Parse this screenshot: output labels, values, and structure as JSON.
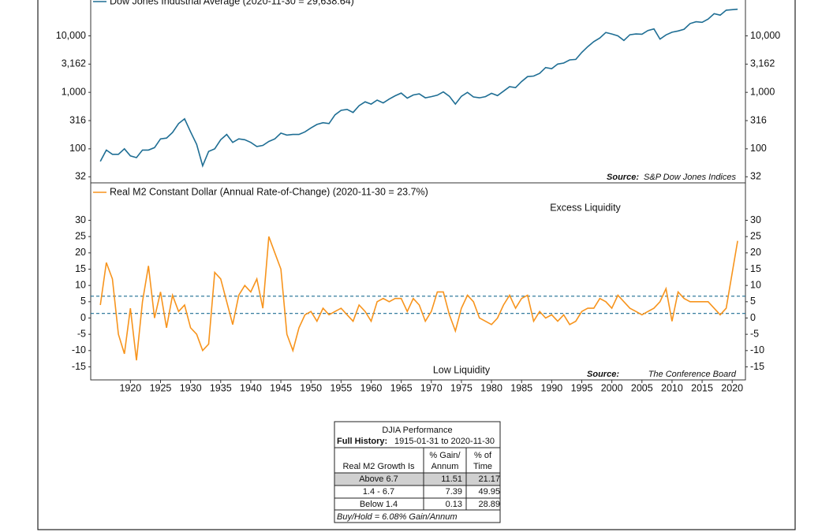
{
  "chart_data": [
    {
      "type": "line",
      "log_y": true,
      "series": [
        {
          "name": "Dow Jones Industrial Average (2020-11-30 = 29,638.64)",
          "color": "#1f6e94",
          "values": [
            60,
            95,
            80,
            80,
            100,
            75,
            70,
            95,
            95,
            105,
            150,
            155,
            195,
            280,
            340,
            200,
            120,
            50,
            90,
            100,
            145,
            180,
            130,
            150,
            145,
            130,
            110,
            115,
            135,
            150,
            190,
            175,
            180,
            180,
            200,
            235,
            270,
            290,
            280,
            400,
            480,
            500,
            440,
            580,
            680,
            620,
            730,
            650,
            760,
            870,
            970,
            790,
            900,
            940,
            800,
            840,
            890,
            1020,
            850,
            620,
            850,
            1000,
            830,
            800,
            840,
            960,
            875,
            1050,
            1260,
            1210,
            1550,
            1900,
            1940,
            2170,
            2750,
            2630,
            3170,
            3300,
            3750,
            3830,
            5100,
            6450,
            7900,
            9180,
            11500,
            10800,
            10000,
            8300,
            10450,
            10800,
            10700,
            12460,
            13260,
            8780,
            10400,
            11580,
            12200,
            13100,
            16500,
            17800,
            17400,
            19800,
            24700,
            23300,
            28500,
            29639
          ]
        }
      ],
      "x": [
        1915,
        1916,
        1917,
        1918,
        1919,
        1920,
        1921,
        1922,
        1923,
        1924,
        1925,
        1926,
        1927,
        1928,
        1929,
        1930,
        1931,
        1932,
        1933,
        1934,
        1935,
        1936,
        1937,
        1938,
        1939,
        1940,
        1941,
        1942,
        1943,
        1944,
        1945,
        1946,
        1947,
        1948,
        1949,
        1950,
        1951,
        1952,
        1953,
        1954,
        1955,
        1956,
        1957,
        1958,
        1959,
        1960,
        1961,
        1962,
        1963,
        1964,
        1965,
        1966,
        1967,
        1968,
        1969,
        1970,
        1971,
        1972,
        1973,
        1974,
        1975,
        1976,
        1977,
        1978,
        1979,
        1980,
        1981,
        1982,
        1983,
        1984,
        1985,
        1986,
        1987,
        1988,
        1989,
        1990,
        1991,
        1992,
        1993,
        1994,
        1995,
        1996,
        1997,
        1998,
        1999,
        2000,
        2001,
        2002,
        2003,
        2004,
        2005,
        2006,
        2007,
        2008,
        2009,
        2010,
        2011,
        2012,
        2013,
        2014,
        2015,
        2016,
        2017,
        2018,
        2019,
        2020.9
      ],
      "xlim": [
        1913.4,
        2022.2
      ],
      "ylim": [
        25,
        46000
      ],
      "yticks": [
        {
          "value": 10000,
          "label": "10,000"
        },
        {
          "value": 3162,
          "label": "3,162"
        },
        {
          "value": 1000,
          "label": "1,000"
        },
        316,
        100,
        32
      ],
      "source_label": "Source:",
      "source": "S&P Dow Jones Indices"
    },
    {
      "type": "line",
      "series": [
        {
          "name": "Real M2 Constant Dollar (Annual Rate-of-Change) (2020-11-30 = 23.7%)",
          "color": "#f7941d",
          "values": [
            4,
            17,
            12,
            -5,
            -11,
            3,
            -13,
            5,
            16,
            0,
            8,
            -3,
            7,
            2,
            4,
            -3,
            -5,
            -10,
            -8,
            14,
            12,
            5,
            -2,
            7,
            10,
            8,
            12,
            3,
            25,
            20,
            15,
            -5,
            -10,
            -3,
            1,
            2,
            -1,
            3,
            1,
            2,
            3,
            1,
            -1,
            4,
            2,
            -1,
            5,
            6,
            5,
            6,
            6,
            2,
            6,
            4,
            -1,
            2,
            8,
            8,
            1,
            -4,
            3,
            7,
            5,
            0,
            -1,
            -2,
            0,
            4,
            7,
            3,
            6,
            7,
            -1,
            2,
            0,
            1,
            -1,
            1,
            -2,
            -1,
            2,
            3,
            3,
            6,
            5,
            3,
            7,
            5,
            3,
            2,
            1,
            2,
            3,
            5,
            9,
            -1,
            8,
            6,
            5,
            5,
            5,
            5,
            3,
            1,
            3,
            23.7
          ]
        }
      ],
      "x": [
        1915,
        1916,
        1917,
        1918,
        1919,
        1920,
        1921,
        1922,
        1923,
        1924,
        1925,
        1926,
        1927,
        1928,
        1929,
        1930,
        1931,
        1932,
        1933,
        1934,
        1935,
        1936,
        1937,
        1938,
        1939,
        1940,
        1941,
        1942,
        1943,
        1944,
        1945,
        1946,
        1947,
        1948,
        1949,
        1950,
        1951,
        1952,
        1953,
        1954,
        1955,
        1956,
        1957,
        1958,
        1959,
        1960,
        1961,
        1962,
        1963,
        1964,
        1965,
        1966,
        1967,
        1968,
        1969,
        1970,
        1971,
        1972,
        1973,
        1974,
        1975,
        1976,
        1977,
        1978,
        1979,
        1980,
        1981,
        1982,
        1983,
        1984,
        1985,
        1986,
        1987,
        1988,
        1989,
        1990,
        1991,
        1992,
        1993,
        1994,
        1995,
        1996,
        1997,
        1998,
        1999,
        2000,
        2001,
        2002,
        2003,
        2004,
        2005,
        2006,
        2007,
        2008,
        2009,
        2010,
        2011,
        2012,
        2013,
        2014,
        2015,
        2016,
        2017,
        2018,
        2019,
        2020.9
      ],
      "xlim": [
        1913.4,
        2022.2
      ],
      "ylim": [
        -19,
        41.5
      ],
      "yticks": [
        30,
        25,
        20,
        15,
        10,
        5,
        0,
        -5,
        -10,
        -15
      ],
      "xticks": [
        1920,
        1925,
        1930,
        1935,
        1940,
        1945,
        1950,
        1955,
        1960,
        1965,
        1970,
        1975,
        1980,
        1985,
        1990,
        1995,
        2000,
        2005,
        2010,
        2015,
        2020
      ],
      "thresholds": [
        6.7,
        1.4
      ],
      "threshold_color": "#1f6e94",
      "annotations": [
        "Excess Liquidity",
        "Low Liquidity"
      ],
      "source_label": "Source:",
      "source": "The Conference Board"
    }
  ],
  "table": {
    "title": "DJIA Performance",
    "history_label": "Full History:",
    "history": "1915-01-31 to 2020-11-30",
    "columns": [
      "Real M2 Growth Is",
      [
        "% Gain/",
        "Annum"
      ],
      [
        "% of",
        "Time"
      ]
    ],
    "rows": [
      [
        "Above 6.7",
        11.51,
        21.17
      ],
      [
        "1.4 - 6.7",
        7.39,
        49.95
      ],
      [
        "Below 1.4",
        0.13,
        28.89
      ]
    ],
    "footer": "Buy/Hold = 6.08% Gain/Annum"
  }
}
